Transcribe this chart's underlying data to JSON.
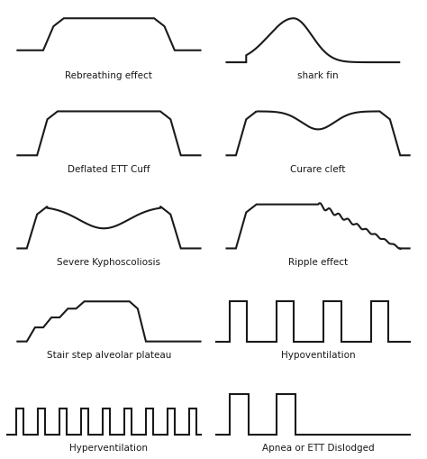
{
  "background": "#ffffff",
  "line_color": "#1a1a1a",
  "line_width": 1.5,
  "patterns": [
    "Rebreathing effect",
    "shark fin",
    "Deflated ETT Cuff",
    "Curare cleft",
    "Severe Kyphoscoliosis",
    "Ripple effect",
    "Stair step alveolar plateau",
    "Hypoventilation",
    "Hyperventilation",
    "Apnea or ETT Dislodged"
  ],
  "label_fontsize": 7.5
}
